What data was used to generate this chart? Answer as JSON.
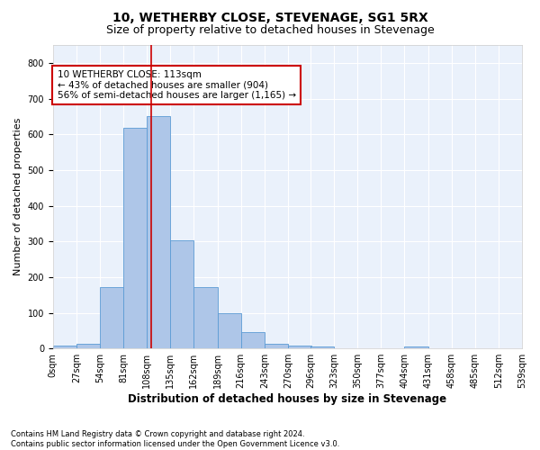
{
  "title": "10, WETHERBY CLOSE, STEVENAGE, SG1 5RX",
  "subtitle": "Size of property relative to detached houses in Stevenage",
  "xlabel": "Distribution of detached houses by size in Stevenage",
  "ylabel": "Number of detached properties",
  "bar_color": "#aec6e8",
  "bar_edge_color": "#5b9bd5",
  "background_color": "#eaf1fb",
  "grid_color": "#ffffff",
  "annotation_box_color": "#cc0000",
  "property_line_color": "#cc0000",
  "property_size": 113,
  "annotation_text": "10 WETHERBY CLOSE: 113sqm\n← 43% of detached houses are smaller (904)\n56% of semi-detached houses are larger (1,165) →",
  "bin_edges": [
    0,
    27,
    54,
    81,
    108,
    135,
    162,
    189,
    216,
    243,
    270,
    296,
    323,
    350,
    377,
    404,
    431,
    458,
    485,
    512,
    539
  ],
  "bin_labels": [
    "0sqm",
    "27sqm",
    "54sqm",
    "81sqm",
    "108sqm",
    "135sqm",
    "162sqm",
    "189sqm",
    "216sqm",
    "243sqm",
    "270sqm",
    "296sqm",
    "323sqm",
    "350sqm",
    "377sqm",
    "404sqm",
    "431sqm",
    "458sqm",
    "485sqm",
    "512sqm",
    "539sqm"
  ],
  "bar_heights": [
    7,
    12,
    173,
    619,
    651,
    304,
    173,
    100,
    45,
    14,
    7,
    5,
    0,
    0,
    0,
    5,
    0,
    0,
    0,
    0
  ],
  "ylim": [
    0,
    850
  ],
  "yticks": [
    0,
    100,
    200,
    300,
    400,
    500,
    600,
    700,
    800
  ],
  "footnote": "Contains HM Land Registry data © Crown copyright and database right 2024.\nContains public sector information licensed under the Open Government Licence v3.0.",
  "title_fontsize": 10,
  "subtitle_fontsize": 9,
  "xlabel_fontsize": 8.5,
  "ylabel_fontsize": 8,
  "tick_fontsize": 7,
  "annotation_fontsize": 7.5,
  "footnote_fontsize": 6
}
